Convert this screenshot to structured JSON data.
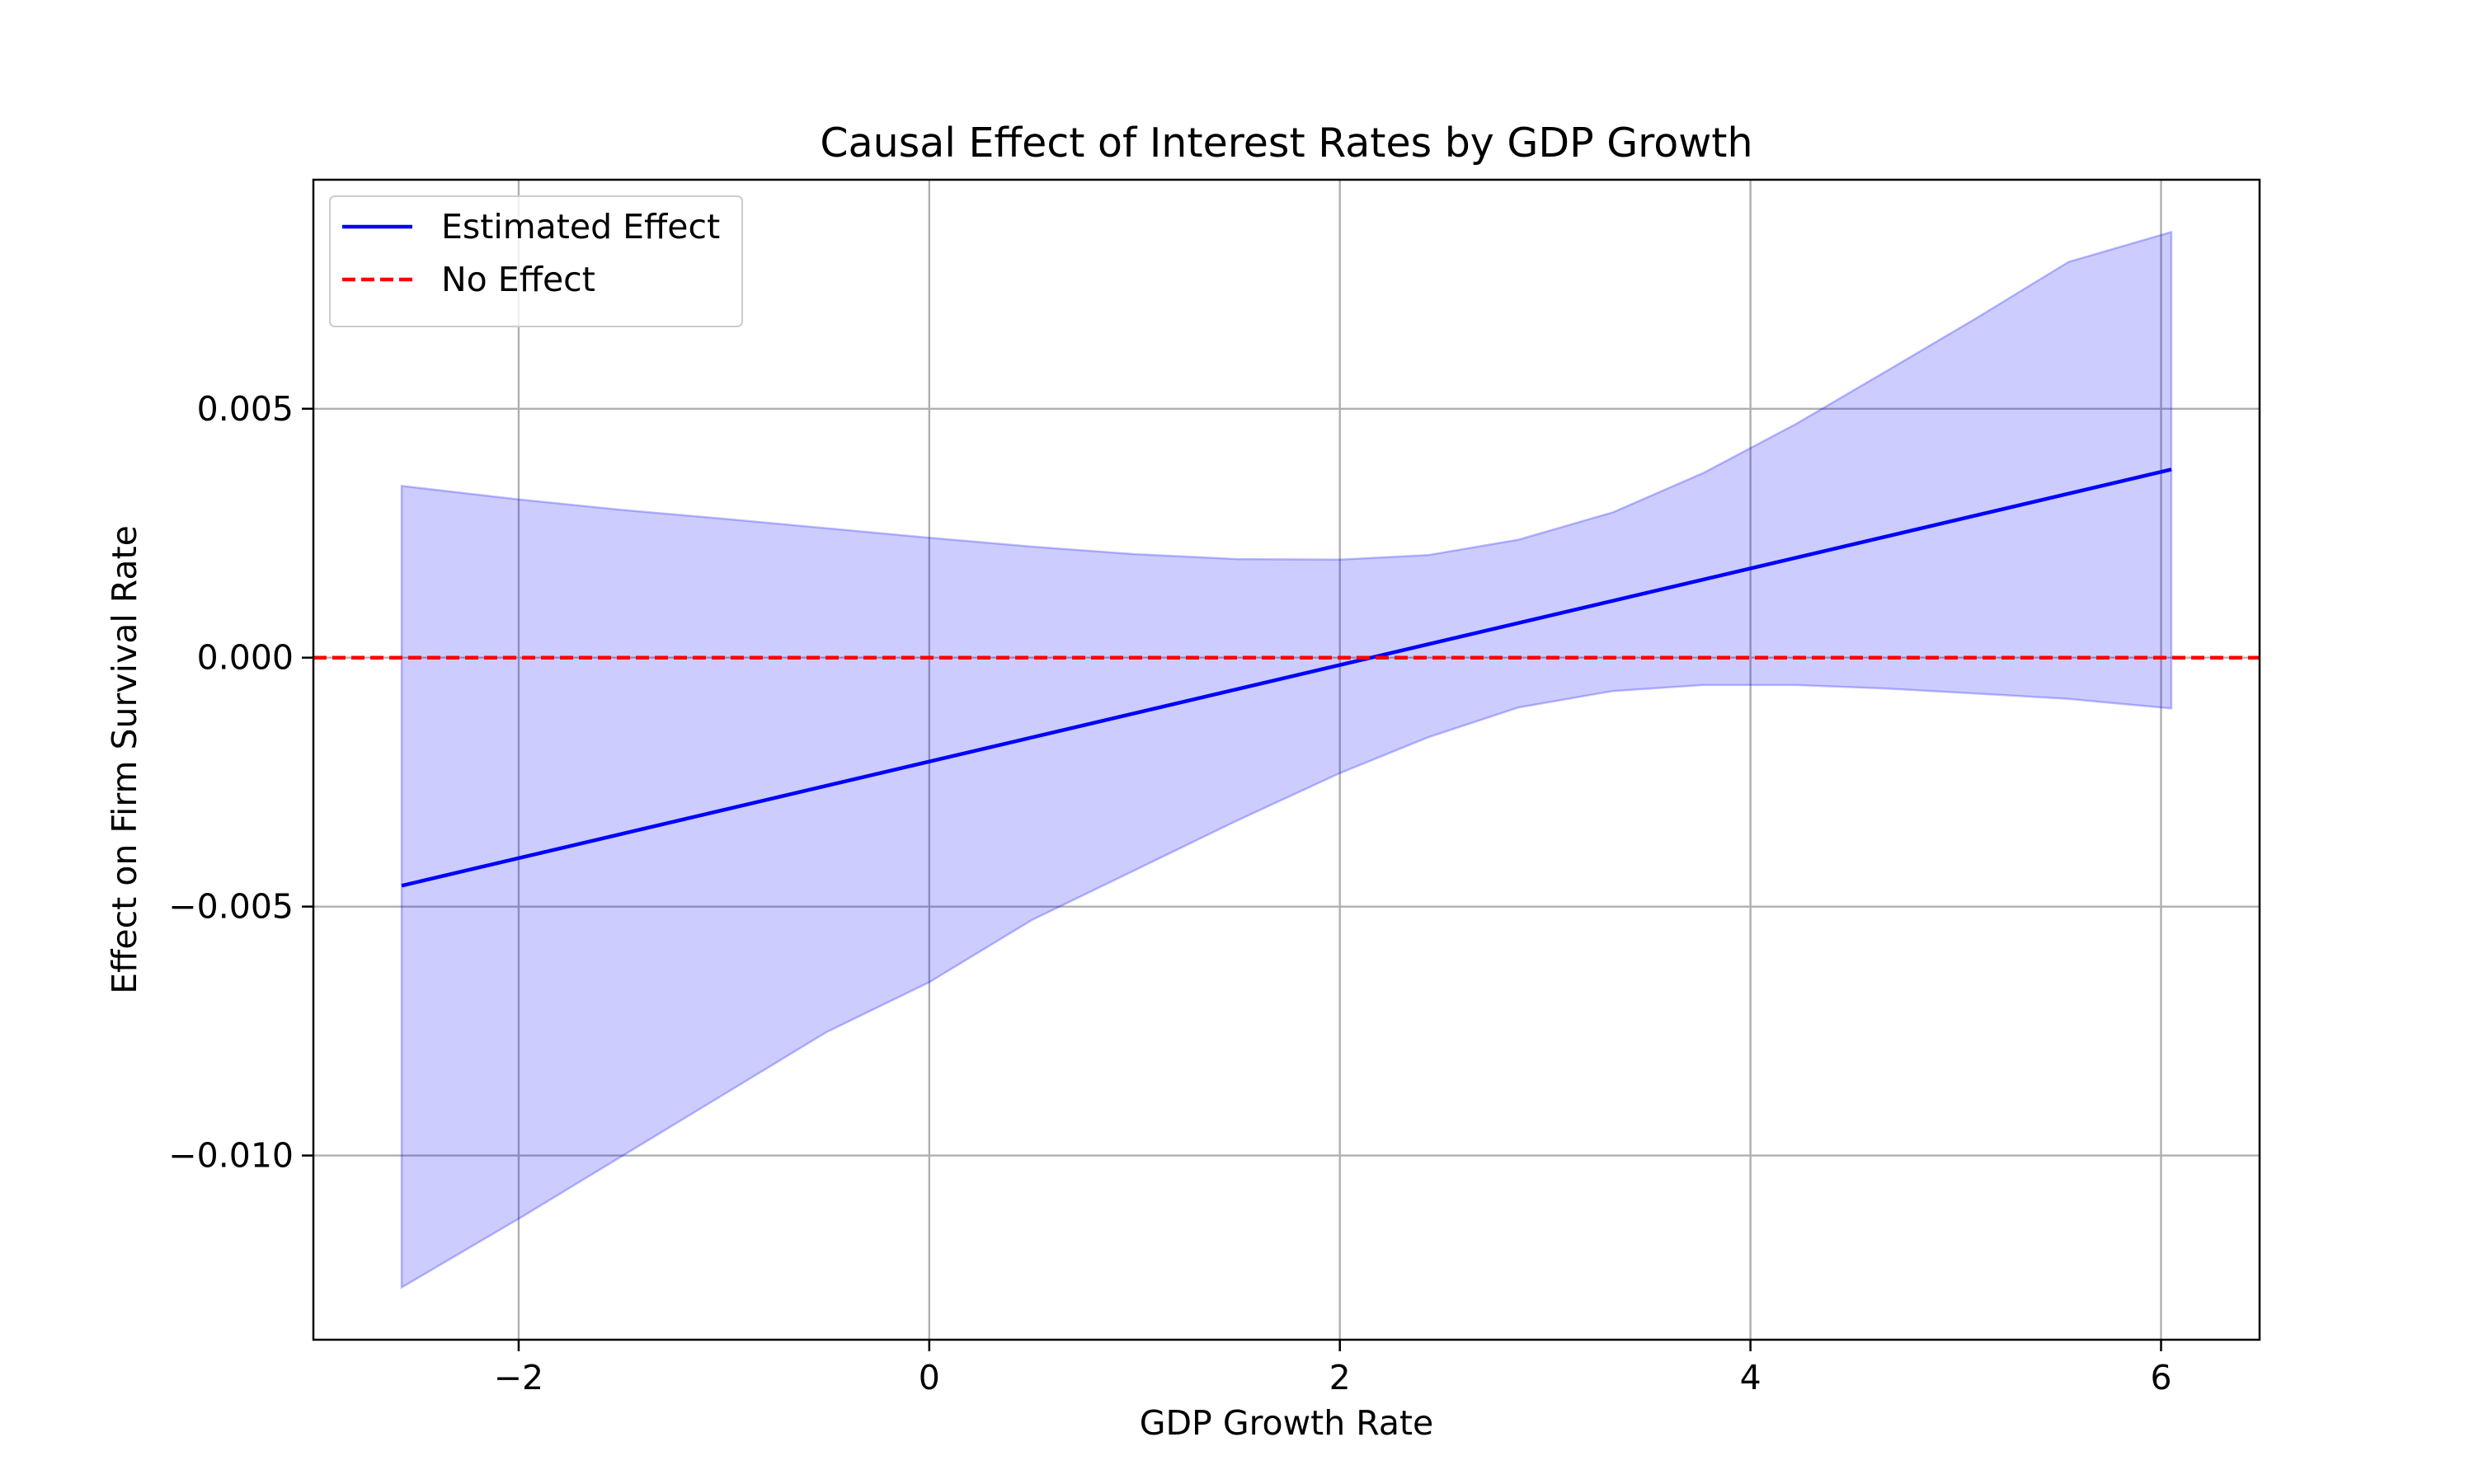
{
  "chart_data": {
    "type": "line",
    "title": "Causal Effect of Interest Rates by GDP Growth",
    "xlabel": "GDP Growth Rate",
    "ylabel": "Effect on Firm Survival Rate",
    "xlim": [
      -3.0,
      6.48
    ],
    "ylim": [
      -0.0137,
      0.0096
    ],
    "x_ticks": [
      -2,
      0,
      2,
      4,
      6
    ],
    "x_tick_labels": [
      "−2",
      "0",
      "2",
      "4",
      "6"
    ],
    "y_ticks": [
      -0.01,
      -0.005,
      0.0,
      0.005
    ],
    "y_tick_labels": [
      "−0.010",
      "−0.005",
      "0.000",
      "0.005"
    ],
    "grid": true,
    "legend_position": "upper-left",
    "series": [
      {
        "name": "Estimated Effect",
        "kind": "line",
        "style": "solid",
        "color": "#0000ff",
        "x": [
          -2.57,
          6.05
        ],
        "y": [
          -0.00458,
          0.00378
        ]
      },
      {
        "name": "No Effect",
        "kind": "hline",
        "style": "dashed",
        "color": "#ff0000",
        "y": 0.0
      }
    ],
    "confidence_band": {
      "color": "#0000ff",
      "opacity": 0.2,
      "x": [
        -2.57,
        -2.0,
        -1.5,
        -1.0,
        -0.5,
        0.0,
        0.5,
        1.0,
        1.5,
        2.0,
        2.43,
        2.87,
        3.33,
        3.77,
        4.22,
        4.66,
        5.1,
        5.55,
        6.05
      ],
      "upper": [
        0.00345,
        0.00318,
        0.00297,
        0.00279,
        0.0026,
        0.00241,
        0.00223,
        0.00208,
        0.00198,
        0.00197,
        0.00206,
        0.00237,
        0.00292,
        0.00371,
        0.00469,
        0.00575,
        0.00682,
        0.00795,
        0.00855
      ],
      "lower": [
        -0.01265,
        -0.01127,
        -0.01002,
        -0.00877,
        -0.00752,
        -0.00652,
        -0.00527,
        -0.00427,
        -0.00327,
        -0.00232,
        -0.0016,
        -0.001,
        -0.00067,
        -0.00055,
        -0.00055,
        -0.00062,
        -0.00072,
        -0.00083,
        -0.00102
      ]
    }
  }
}
